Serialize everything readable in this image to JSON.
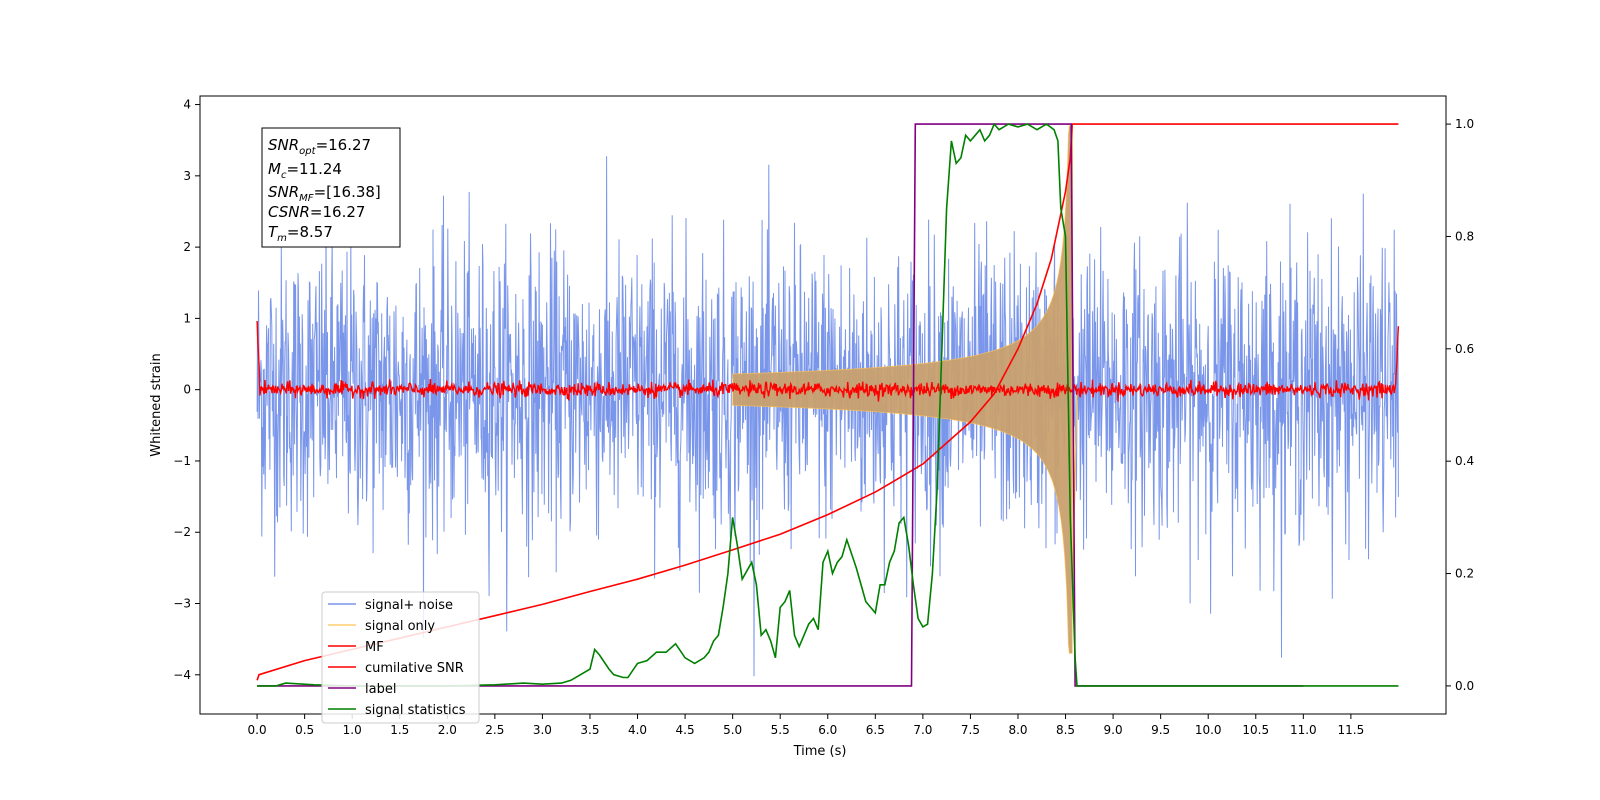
{
  "chart_data": {
    "type": "line",
    "title": "",
    "xlabel": "Time (s)",
    "ylabel": "Whitened strain",
    "xlim": [
      -0.6,
      12.5
    ],
    "ylim": [
      -4.55,
      4.12
    ],
    "y2lim": [
      -0.05,
      1.05
    ],
    "x_ticks": [
      "0.0",
      "0.5",
      "1.0",
      "1.5",
      "2.0",
      "2.5",
      "3.0",
      "3.5",
      "4.0",
      "4.5",
      "5.0",
      "5.5",
      "6.0",
      "6.5",
      "7.0",
      "7.5",
      "8.0",
      "8.5",
      "9.0",
      "9.5",
      "10.0",
      "10.5",
      "11.0",
      "11.5"
    ],
    "y_ticks": [
      "−4",
      "−3",
      "−2",
      "−1",
      "0",
      "1",
      "2",
      "3",
      "4"
    ],
    "y2_ticks": [
      "0.0",
      "0.2",
      "0.4",
      "0.6",
      "0.8",
      "1.0"
    ],
    "grid": false,
    "legend_position": "lower-left",
    "annotation": {
      "snr_opt": {
        "main": "SNR",
        "sub": "opt",
        "value": "=16.27"
      },
      "mc": {
        "main": "M",
        "sub": "c",
        "value": "=11.24"
      },
      "snr_mf": {
        "main": "SNR",
        "sub": "MF",
        "value": "=[16.38]"
      },
      "csnr": {
        "main": "CSNR",
        "sub": "",
        "value": "=16.27"
      },
      "tm": {
        "main": "T",
        "sub": "m",
        "value": "=8.57"
      }
    },
    "series": [
      {
        "name": "signal+ noise",
        "color": "#4169e1",
        "axis": "left",
        "kind": "noise",
        "amplitude": 1.0,
        "range": [
          0,
          12
        ]
      },
      {
        "name": "signal only",
        "color": "#ffc04d",
        "axis": "left",
        "kind": "chirp",
        "merger_time": 8.57,
        "peak_amplitude": 3.7
      },
      {
        "name": "MF",
        "color": "#ff0000",
        "axis": "left",
        "kind": "matched-filter",
        "edge_value": 1.0,
        "range": [
          0,
          12
        ]
      },
      {
        "name": "cumilative SNR",
        "color": "#ff0000",
        "axis": "right",
        "x": [
          0.0,
          0.02,
          0.5,
          1.0,
          1.5,
          2.0,
          2.5,
          3.0,
          3.5,
          4.0,
          4.5,
          5.0,
          5.5,
          6.0,
          6.5,
          7.0,
          7.5,
          7.75,
          8.0,
          8.2,
          8.35,
          8.45,
          8.5,
          8.55,
          8.57,
          12.0
        ],
        "values": [
          0.01,
          0.02,
          0.045,
          0.065,
          0.085,
          0.105,
          0.125,
          0.145,
          0.168,
          0.19,
          0.215,
          0.242,
          0.27,
          0.305,
          0.345,
          0.395,
          0.47,
          0.52,
          0.6,
          0.68,
          0.76,
          0.84,
          0.88,
          0.94,
          1.0,
          1.0
        ]
      },
      {
        "name": "label",
        "color": "#800080",
        "axis": "right",
        "x": [
          0.0,
          6.88,
          6.92,
          8.56,
          8.6,
          11.0
        ],
        "values": [
          0.0,
          0.0,
          1.0,
          1.0,
          0.0,
          0.0
        ]
      },
      {
        "name": "signal statistics",
        "color": "#008000",
        "axis": "right",
        "x": [
          0.0,
          0.2,
          0.3,
          0.6,
          1.0,
          1.5,
          2.0,
          2.5,
          2.8,
          3.0,
          3.2,
          3.3,
          3.4,
          3.5,
          3.55,
          3.6,
          3.7,
          3.75,
          3.85,
          3.9,
          4.0,
          4.1,
          4.2,
          4.3,
          4.4,
          4.5,
          4.6,
          4.7,
          4.75,
          4.8,
          4.85,
          4.9,
          4.95,
          5.0,
          5.05,
          5.1,
          5.2,
          5.25,
          5.3,
          5.35,
          5.4,
          5.45,
          5.5,
          5.55,
          5.6,
          5.65,
          5.7,
          5.8,
          5.85,
          5.9,
          5.95,
          6.0,
          6.05,
          6.1,
          6.15,
          6.2,
          6.3,
          6.4,
          6.5,
          6.55,
          6.6,
          6.65,
          6.7,
          6.75,
          6.8,
          6.85,
          6.9,
          6.95,
          7.0,
          7.05,
          7.1,
          7.15,
          7.2,
          7.25,
          7.3,
          7.35,
          7.4,
          7.45,
          7.5,
          7.55,
          7.6,
          7.65,
          7.7,
          7.75,
          7.8,
          7.9,
          8.0,
          8.1,
          8.2,
          8.3,
          8.38,
          8.42,
          8.45,
          8.5,
          8.52,
          8.55,
          8.6,
          8.62,
          8.65,
          12.0
        ],
        "values": [
          0.0,
          0.0,
          0.005,
          0.002,
          0.0,
          0.0,
          0.0,
          0.002,
          0.005,
          0.003,
          0.005,
          0.01,
          0.02,
          0.03,
          0.065,
          0.055,
          0.03,
          0.02,
          0.015,
          0.015,
          0.04,
          0.045,
          0.06,
          0.06,
          0.075,
          0.05,
          0.04,
          0.05,
          0.06,
          0.08,
          0.09,
          0.14,
          0.2,
          0.3,
          0.25,
          0.19,
          0.22,
          0.18,
          0.09,
          0.1,
          0.08,
          0.05,
          0.14,
          0.15,
          0.17,
          0.09,
          0.07,
          0.11,
          0.12,
          0.1,
          0.22,
          0.24,
          0.2,
          0.22,
          0.23,
          0.26,
          0.21,
          0.15,
          0.13,
          0.18,
          0.18,
          0.22,
          0.24,
          0.29,
          0.3,
          0.25,
          0.18,
          0.12,
          0.105,
          0.11,
          0.2,
          0.35,
          0.6,
          0.85,
          0.97,
          0.93,
          0.94,
          0.98,
          0.97,
          0.98,
          0.99,
          0.97,
          0.98,
          1.0,
          0.99,
          1.0,
          0.995,
          1.0,
          0.99,
          1.0,
          0.99,
          0.97,
          0.85,
          0.8,
          0.6,
          0.3,
          0.05,
          0.0,
          0.0,
          0.0
        ]
      }
    ]
  }
}
